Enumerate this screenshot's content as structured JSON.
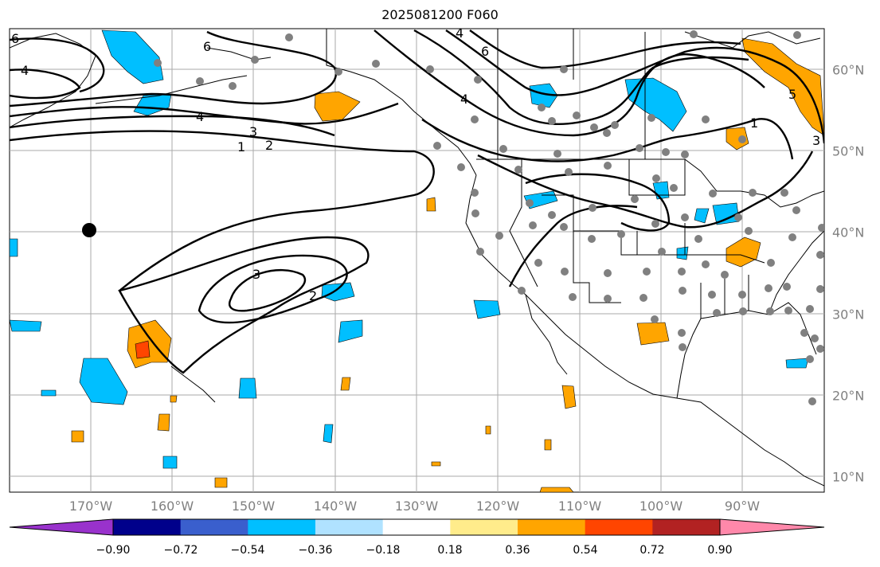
{
  "title": "2025081200 F060",
  "lon_labels": [
    "170°W",
    "160°W",
    "150°W",
    "140°W",
    "130°W",
    "120°W",
    "110°W",
    "100°W",
    "90°W"
  ],
  "lat_labels": [
    "60°N",
    "50°N",
    "40°N",
    "30°N",
    "20°N",
    "10°N"
  ],
  "contour_labels": [
    "6",
    "4",
    "4",
    "3",
    "2",
    "1",
    "6",
    "4",
    "4",
    "6",
    "5",
    "1",
    "3",
    "3",
    "2"
  ],
  "colorbar": {
    "ticks": [
      "−0.90",
      "−0.72",
      "−0.54",
      "−0.36",
      "−0.18",
      "0.18",
      "0.36",
      "0.54",
      "0.72",
      "0.90"
    ],
    "colors": [
      "#9932cc",
      "#00008b",
      "#3a5fcd",
      "#00bfff",
      "#b0e2ff",
      "#ffffff",
      "#ffec8b",
      "#ffa500",
      "#ff4500",
      "#b22222",
      "#ff88aa"
    ]
  },
  "style": {
    "land_line": "#000000",
    "grid": "#aaaaaa",
    "station_dot": "#808080",
    "marker": "#000000"
  }
}
